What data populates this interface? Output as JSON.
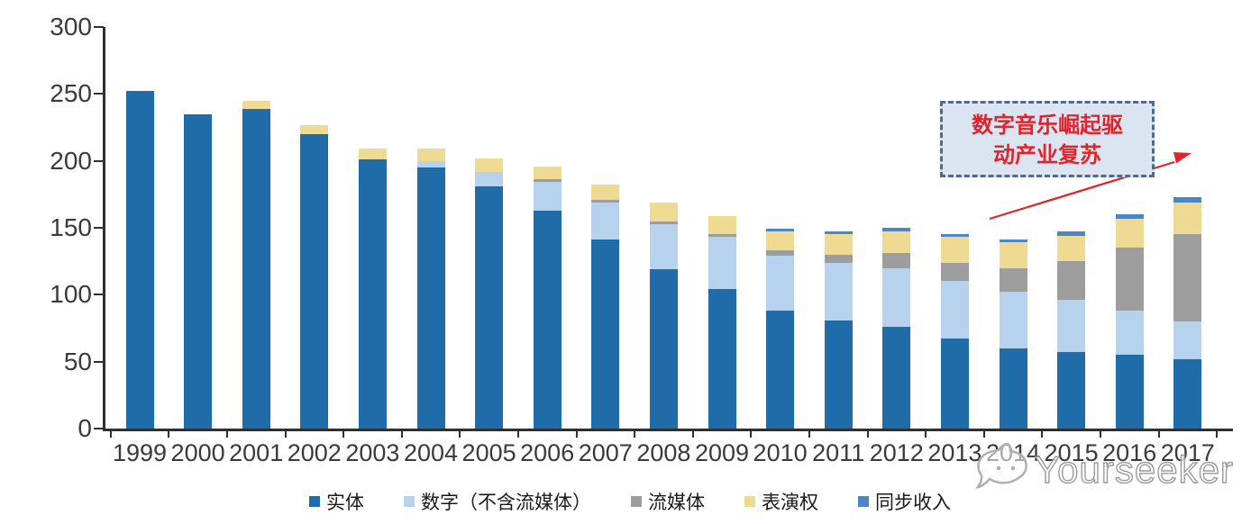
{
  "chart_data": {
    "type": "bar",
    "stacked": true,
    "title": "",
    "xlabel": "",
    "ylabel": "",
    "categories": [
      "1999",
      "2000",
      "2001",
      "2002",
      "2003",
      "2004",
      "2005",
      "2006",
      "2007",
      "2008",
      "2009",
      "2010",
      "2011",
      "2012",
      "2013",
      "2014",
      "2015",
      "2016",
      "2017"
    ],
    "series": [
      {
        "name": "实体",
        "color": "#1f6ca8",
        "values": [
          252,
          235,
          239,
          220,
          201,
          195,
          181,
          163,
          141,
          119,
          104,
          88,
          81,
          76,
          67,
          60,
          57,
          55,
          52
        ]
      },
      {
        "name": "数字（不含流媒体）",
        "color": "#b7d2ec",
        "values": [
          0,
          0,
          0,
          0,
          0,
          5,
          11,
          21,
          28,
          34,
          39,
          41,
          43,
          44,
          43,
          42,
          39,
          33,
          28
        ]
      },
      {
        "name": "流媒体",
        "color": "#9d9d9d",
        "values": [
          0,
          0,
          0,
          0,
          0,
          0,
          0,
          2,
          2,
          2,
          2,
          4,
          6,
          11,
          14,
          18,
          29,
          47,
          65
        ]
      },
      {
        "name": "表演权",
        "color": "#eeda92",
        "values": [
          0,
          0,
          6,
          7,
          8,
          9,
          10,
          10,
          11,
          14,
          14,
          14,
          15,
          16,
          19,
          19,
          19,
          22,
          24
        ]
      },
      {
        "name": "同步收入",
        "color": "#4b86c5",
        "values": [
          0,
          0,
          0,
          0,
          0,
          0,
          0,
          0,
          0,
          0,
          0,
          2,
          2,
          3,
          2,
          2,
          3,
          3,
          4
        ]
      }
    ],
    "totals": [
      252,
      235,
      245,
      227,
      209,
      209,
      202,
      196,
      182,
      169,
      159,
      149,
      147,
      150,
      145,
      141,
      147,
      160,
      173
    ],
    "ylim": [
      0,
      300
    ],
    "yticks": [
      0,
      50,
      100,
      150,
      200,
      250,
      300
    ],
    "grid": false,
    "legend_position": "bottom"
  },
  "annotation": {
    "line1": "数字音乐崛起驱",
    "line2": "动产业复苏",
    "text_color": "#e0242b",
    "box_fill": "#dbe5f2",
    "box_border": "#54678f",
    "arrow_color": "#e0242b"
  },
  "watermark": {
    "text": "Yourseeker",
    "color": "#9a9a9a"
  }
}
